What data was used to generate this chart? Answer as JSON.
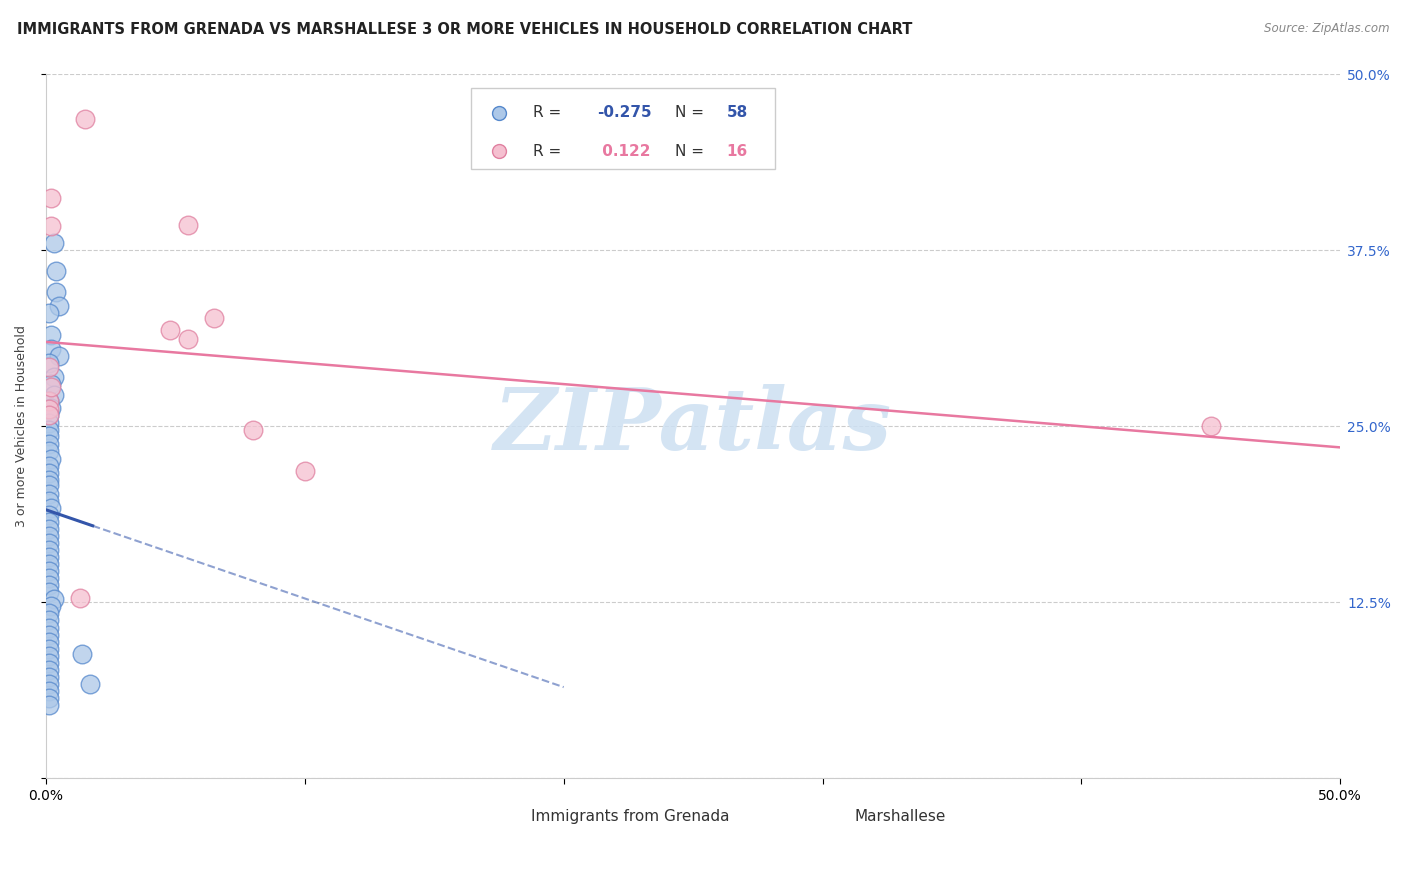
{
  "title": "IMMIGRANTS FROM GRENADA VS MARSHALLESE 3 OR MORE VEHICLES IN HOUSEHOLD CORRELATION CHART",
  "source": "Source: ZipAtlas.com",
  "ylabel": "3 or more Vehicles in Household",
  "xlim": [
    0.0,
    0.5
  ],
  "ylim": [
    0.0,
    0.5
  ],
  "yticks": [
    0.0,
    0.125,
    0.25,
    0.375,
    0.5
  ],
  "ytick_labels": [
    "",
    "12.5%",
    "25.0%",
    "37.5%",
    "50.0%"
  ],
  "legend_blue_r": "-0.275",
  "legend_blue_n": "58",
  "legend_pink_r": "0.122",
  "legend_pink_n": "16",
  "blue_color": "#adc8e8",
  "blue_edge_color": "#5588cc",
  "blue_line_color": "#3355aa",
  "pink_color": "#f5c0d0",
  "pink_edge_color": "#e080a0",
  "pink_line_color": "#e878a0",
  "blue_scatter": [
    [
      0.003,
      0.38
    ],
    [
      0.004,
      0.36
    ],
    [
      0.004,
      0.345
    ],
    [
      0.005,
      0.335
    ],
    [
      0.001,
      0.33
    ],
    [
      0.002,
      0.315
    ],
    [
      0.002,
      0.305
    ],
    [
      0.005,
      0.3
    ],
    [
      0.001,
      0.295
    ],
    [
      0.003,
      0.285
    ],
    [
      0.002,
      0.28
    ],
    [
      0.003,
      0.272
    ],
    [
      0.001,
      0.268
    ],
    [
      0.002,
      0.263
    ],
    [
      0.001,
      0.258
    ],
    [
      0.001,
      0.252
    ],
    [
      0.001,
      0.247
    ],
    [
      0.001,
      0.243
    ],
    [
      0.001,
      0.237
    ],
    [
      0.001,
      0.232
    ],
    [
      0.002,
      0.227
    ],
    [
      0.001,
      0.222
    ],
    [
      0.001,
      0.217
    ],
    [
      0.001,
      0.212
    ],
    [
      0.001,
      0.208
    ],
    [
      0.001,
      0.202
    ],
    [
      0.001,
      0.197
    ],
    [
      0.002,
      0.192
    ],
    [
      0.001,
      0.187
    ],
    [
      0.001,
      0.182
    ],
    [
      0.001,
      0.177
    ],
    [
      0.001,
      0.172
    ],
    [
      0.001,
      0.167
    ],
    [
      0.001,
      0.162
    ],
    [
      0.001,
      0.157
    ],
    [
      0.001,
      0.152
    ],
    [
      0.001,
      0.147
    ],
    [
      0.001,
      0.142
    ],
    [
      0.001,
      0.137
    ],
    [
      0.001,
      0.132
    ],
    [
      0.003,
      0.127
    ],
    [
      0.002,
      0.122
    ],
    [
      0.001,
      0.117
    ],
    [
      0.001,
      0.112
    ],
    [
      0.001,
      0.107
    ],
    [
      0.001,
      0.102
    ],
    [
      0.001,
      0.097
    ],
    [
      0.001,
      0.092
    ],
    [
      0.001,
      0.087
    ],
    [
      0.001,
      0.082
    ],
    [
      0.001,
      0.077
    ],
    [
      0.001,
      0.072
    ],
    [
      0.001,
      0.067
    ],
    [
      0.001,
      0.062
    ],
    [
      0.001,
      0.057
    ],
    [
      0.001,
      0.052
    ],
    [
      0.014,
      0.088
    ],
    [
      0.017,
      0.067
    ]
  ],
  "pink_scatter": [
    [
      0.015,
      0.468
    ],
    [
      0.002,
      0.412
    ],
    [
      0.002,
      0.392
    ],
    [
      0.055,
      0.393
    ],
    [
      0.048,
      0.318
    ],
    [
      0.055,
      0.312
    ],
    [
      0.065,
      0.327
    ],
    [
      0.001,
      0.292
    ],
    [
      0.001,
      0.268
    ],
    [
      0.001,
      0.262
    ],
    [
      0.001,
      0.258
    ],
    [
      0.013,
      0.128
    ],
    [
      0.08,
      0.247
    ],
    [
      0.45,
      0.25
    ],
    [
      0.1,
      0.218
    ],
    [
      0.002,
      0.278
    ]
  ],
  "background_color": "#ffffff",
  "watermark_text": "ZIPatlas",
  "watermark_color": "#cde0f2",
  "title_fontsize": 10.5,
  "axis_label_fontsize": 9,
  "legend_fontsize": 11,
  "tick_fontsize": 10
}
